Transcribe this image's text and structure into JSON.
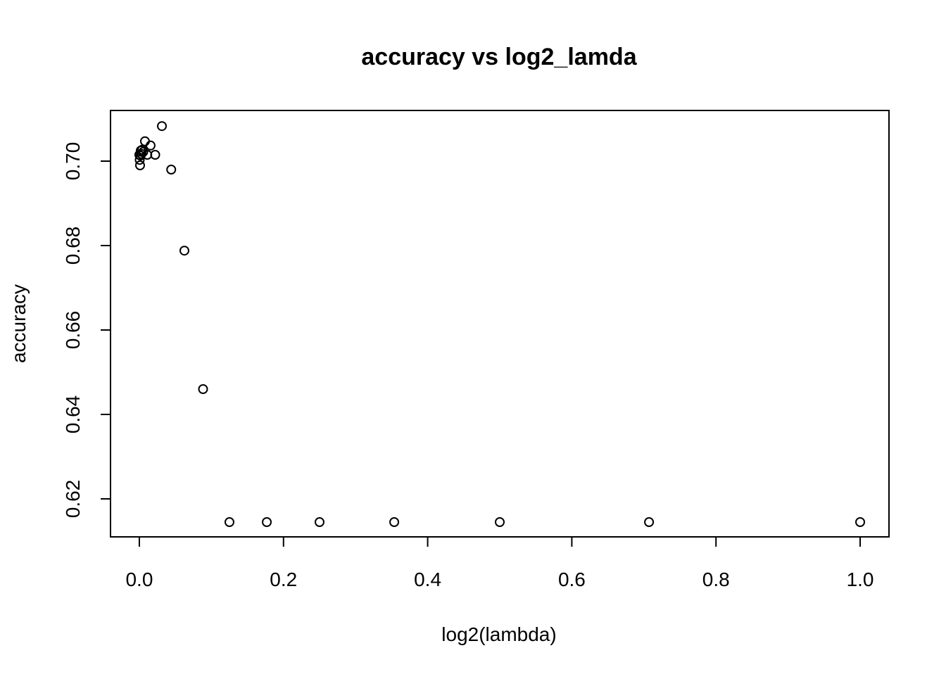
{
  "chart_data": {
    "type": "scatter",
    "title": "accuracy vs log2_lamda",
    "xlabel": "log2(lambda)",
    "ylabel": "accuracy",
    "xlim": [
      -0.04,
      1.04
    ],
    "ylim": [
      0.611,
      0.712
    ],
    "x_ticks": [
      0.0,
      0.2,
      0.4,
      0.6,
      0.8,
      1.0
    ],
    "x_tick_labels": [
      "0.0",
      "0.2",
      "0.4",
      "0.6",
      "0.8",
      "1.0"
    ],
    "y_ticks": [
      0.62,
      0.64,
      0.66,
      0.68,
      0.7
    ],
    "y_tick_labels": [
      "0.62",
      "0.64",
      "0.66",
      "0.68",
      "0.70"
    ],
    "grid": false,
    "legend": "none",
    "marker": "open-circle",
    "points": [
      {
        "x": 0.0,
        "y": 0.7015
      },
      {
        "x": 0.0005,
        "y": 0.7003
      },
      {
        "x": 0.001,
        "y": 0.699
      },
      {
        "x": 0.0015,
        "y": 0.7013
      },
      {
        "x": 0.002,
        "y": 0.7025
      },
      {
        "x": 0.003,
        "y": 0.7017
      },
      {
        "x": 0.004,
        "y": 0.7027
      },
      {
        "x": 0.0055,
        "y": 0.7022
      },
      {
        "x": 0.0078,
        "y": 0.7047
      },
      {
        "x": 0.011,
        "y": 0.7015
      },
      {
        "x": 0.0156,
        "y": 0.7037
      },
      {
        "x": 0.022,
        "y": 0.7015
      },
      {
        "x": 0.0313,
        "y": 0.7083
      },
      {
        "x": 0.0442,
        "y": 0.698
      },
      {
        "x": 0.0625,
        "y": 0.6788
      },
      {
        "x": 0.0884,
        "y": 0.646
      },
      {
        "x": 0.125,
        "y": 0.6145
      },
      {
        "x": 0.1768,
        "y": 0.6145
      },
      {
        "x": 0.25,
        "y": 0.6145
      },
      {
        "x": 0.3536,
        "y": 0.6145
      },
      {
        "x": 0.5,
        "y": 0.6145
      },
      {
        "x": 0.7071,
        "y": 0.6145
      },
      {
        "x": 1.0,
        "y": 0.6145
      }
    ]
  }
}
